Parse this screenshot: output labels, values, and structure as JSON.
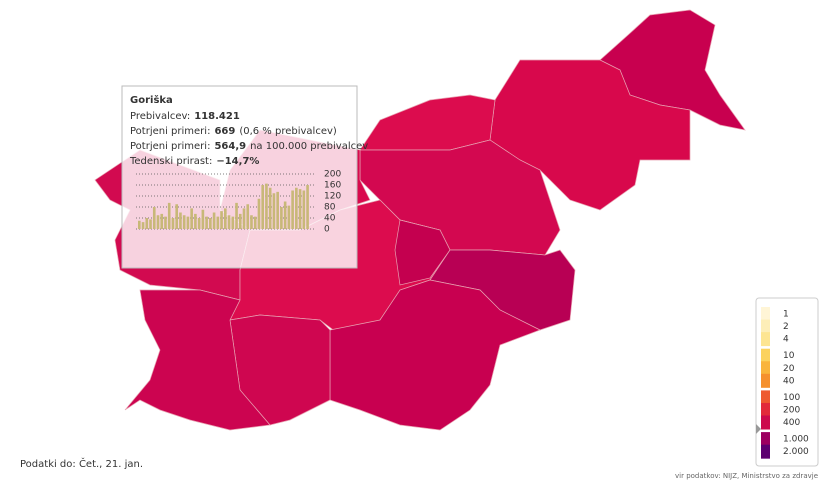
{
  "tooltip": {
    "title": "Goriška",
    "lines": [
      {
        "label": "Prebivalcev:",
        "value": "118.421",
        "suffix": ""
      },
      {
        "label": "Potrjeni primeri:",
        "value": "669",
        "suffix": "(0,6 % prebivalcev)"
      },
      {
        "label": "Potrjeni primeri:",
        "value": "564,9",
        "suffix": "na 100.000 prebivalcev"
      },
      {
        "label": "Tedenski prirast:",
        "value": "−14,7%",
        "suffix": ""
      }
    ],
    "sparkline": {
      "values": [
        30,
        25,
        40,
        35,
        80,
        50,
        55,
        45,
        95,
        40,
        90,
        60,
        50,
        45,
        75,
        55,
        40,
        70,
        45,
        40,
        60,
        45,
        65,
        75,
        50,
        45,
        95,
        55,
        75,
        90,
        50,
        45,
        110,
        160,
        165,
        150,
        130,
        135,
        80,
        100,
        85,
        140,
        150,
        145,
        140,
        160
      ],
      "color": "#c8b878",
      "ylim": [
        0,
        200
      ],
      "yticks": [
        200,
        160,
        120,
        80,
        40,
        0
      ]
    }
  },
  "legend": {
    "ticks": [
      1,
      2,
      4,
      10,
      20,
      40,
      100,
      200,
      400,
      {
        "value": 1000,
        "label": "1.000"
      },
      {
        "value": 2000,
        "label": "2.000"
      }
    ],
    "colors": [
      "#fff5d6",
      "#fdeeb8",
      "#fde592",
      "#fbd25e",
      "#f9b43c",
      "#f5902e",
      "#ee5a30",
      "#e22a3a",
      "#cc0a4c",
      "#9c0060",
      "#5c0070"
    ]
  },
  "footer": {
    "date": "Podatki do: Čet., 21. jan.",
    "source": "vir podatkov: NIJZ, Ministrstvo za zdravje"
  }
}
